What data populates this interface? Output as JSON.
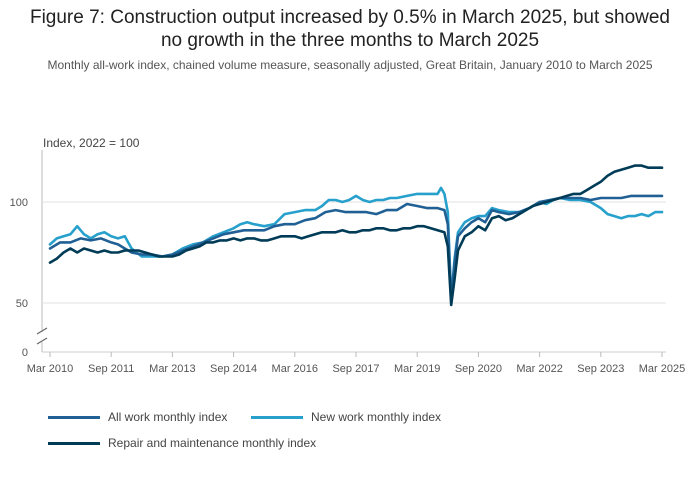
{
  "title": "Figure 7: Construction output increased by 0.5% in March 2025, but showed no growth in the three months to March 2025",
  "title_line1": "Figure 7: Construction output increased by 0.5% in March 2025, but showed",
  "title_line2": "no growth in the three months to March 2025",
  "subtitle": "Monthly all-work index, chained volume measure, seasonally adjusted, Great Britain, January 2010 to March 2025",
  "chart_data": {
    "type": "line",
    "title": "Figure 7: Construction output increased by 0.5% in March 2025, but showed no growth in the three months to March 2025",
    "ylabel": "Index, 2022 = 100",
    "xlabel": "",
    "y_ticks": [
      0,
      50,
      100
    ],
    "y_tick_labels": [
      "0",
      "50",
      "100"
    ],
    "y_axis_break": true,
    "ylim": [
      0,
      123
    ],
    "x_start": "Mar 2010",
    "x_end": "Mar 2025",
    "x_ticks": [
      "Mar 2010",
      "Sep 2011",
      "Mar 2013",
      "Sep 2014",
      "Mar 2016",
      "Sep 2017",
      "Mar 2019",
      "Sep 2020",
      "Mar 2022",
      "Sep 2023",
      "Mar 2025"
    ],
    "x_tick_months": [
      0,
      18,
      36,
      54,
      72,
      90,
      108,
      126,
      144,
      162,
      180
    ],
    "grid": true,
    "legend_position": "bottom",
    "series": [
      {
        "name": "All work monthly index",
        "color": "#206095",
        "points": [
          [
            0,
            77
          ],
          [
            3,
            80
          ],
          [
            6,
            80
          ],
          [
            9,
            82
          ],
          [
            12,
            81
          ],
          [
            15,
            82
          ],
          [
            18,
            80
          ],
          [
            20,
            79
          ],
          [
            22,
            77
          ],
          [
            24,
            75
          ],
          [
            27,
            74
          ],
          [
            30,
            74
          ],
          [
            33,
            73
          ],
          [
            36,
            74
          ],
          [
            39,
            76
          ],
          [
            42,
            78
          ],
          [
            45,
            80
          ],
          [
            48,
            82
          ],
          [
            51,
            84
          ],
          [
            54,
            85
          ],
          [
            57,
            86
          ],
          [
            60,
            86
          ],
          [
            63,
            86
          ],
          [
            66,
            88
          ],
          [
            69,
            89
          ],
          [
            72,
            89
          ],
          [
            75,
            91
          ],
          [
            78,
            92
          ],
          [
            81,
            95
          ],
          [
            84,
            96
          ],
          [
            87,
            95
          ],
          [
            90,
            95
          ],
          [
            93,
            95
          ],
          [
            96,
            94
          ],
          [
            99,
            96
          ],
          [
            102,
            96
          ],
          [
            105,
            99
          ],
          [
            108,
            98
          ],
          [
            111,
            97
          ],
          [
            114,
            97
          ],
          [
            116,
            96
          ],
          [
            117,
            89
          ],
          [
            118,
            51
          ],
          [
            119,
            70
          ],
          [
            120,
            83
          ],
          [
            122,
            87
          ],
          [
            124,
            90
          ],
          [
            126,
            92
          ],
          [
            128,
            90
          ],
          [
            130,
            96
          ],
          [
            132,
            95
          ],
          [
            135,
            94
          ],
          [
            138,
            95
          ],
          [
            141,
            97
          ],
          [
            144,
            100
          ],
          [
            147,
            101
          ],
          [
            150,
            102
          ],
          [
            153,
            102
          ],
          [
            156,
            102
          ],
          [
            159,
            101
          ],
          [
            162,
            102
          ],
          [
            165,
            102
          ],
          [
            168,
            102
          ],
          [
            171,
            103
          ],
          [
            174,
            103
          ],
          [
            177,
            103
          ],
          [
            180,
            103
          ]
        ]
      },
      {
        "name": "New work monthly index",
        "color": "#27a0cc",
        "points": [
          [
            0,
            79
          ],
          [
            2,
            82
          ],
          [
            4,
            83
          ],
          [
            6,
            84
          ],
          [
            8,
            88
          ],
          [
            10,
            84
          ],
          [
            12,
            82
          ],
          [
            14,
            84
          ],
          [
            16,
            85
          ],
          [
            18,
            83
          ],
          [
            20,
            82
          ],
          [
            22,
            83
          ],
          [
            24,
            77
          ],
          [
            27,
            73
          ],
          [
            30,
            73
          ],
          [
            33,
            73
          ],
          [
            36,
            74
          ],
          [
            39,
            77
          ],
          [
            42,
            79
          ],
          [
            45,
            80
          ],
          [
            48,
            83
          ],
          [
            51,
            85
          ],
          [
            54,
            87
          ],
          [
            56,
            89
          ],
          [
            58,
            90
          ],
          [
            60,
            89
          ],
          [
            63,
            88
          ],
          [
            66,
            89
          ],
          [
            69,
            94
          ],
          [
            72,
            95
          ],
          [
            75,
            96
          ],
          [
            78,
            96
          ],
          [
            80,
            98
          ],
          [
            82,
            101
          ],
          [
            84,
            101
          ],
          [
            86,
            100
          ],
          [
            88,
            101
          ],
          [
            90,
            103
          ],
          [
            92,
            101
          ],
          [
            94,
            100
          ],
          [
            96,
            101
          ],
          [
            98,
            101
          ],
          [
            100,
            102
          ],
          [
            102,
            102
          ],
          [
            105,
            103
          ],
          [
            108,
            104
          ],
          [
            111,
            104
          ],
          [
            114,
            104
          ],
          [
            115,
            107
          ],
          [
            116,
            104
          ],
          [
            117,
            95
          ],
          [
            118,
            52
          ],
          [
            119,
            72
          ],
          [
            120,
            85
          ],
          [
            122,
            90
          ],
          [
            124,
            92
          ],
          [
            126,
            93
          ],
          [
            128,
            93
          ],
          [
            130,
            97
          ],
          [
            132,
            96
          ],
          [
            135,
            95
          ],
          [
            138,
            95
          ],
          [
            141,
            97
          ],
          [
            144,
            100
          ],
          [
            146,
            99
          ],
          [
            148,
            101
          ],
          [
            150,
            102
          ],
          [
            153,
            101
          ],
          [
            156,
            101
          ],
          [
            159,
            100
          ],
          [
            162,
            97
          ],
          [
            164,
            94
          ],
          [
            166,
            93
          ],
          [
            168,
            92
          ],
          [
            170,
            93
          ],
          [
            172,
            93
          ],
          [
            174,
            94
          ],
          [
            176,
            93
          ],
          [
            178,
            95
          ],
          [
            180,
            95
          ]
        ]
      },
      {
        "name": "Repair and maintenance monthly index",
        "color": "#003c57",
        "points": [
          [
            0,
            70
          ],
          [
            2,
            72
          ],
          [
            4,
            75
          ],
          [
            6,
            77
          ],
          [
            8,
            75
          ],
          [
            10,
            77
          ],
          [
            12,
            76
          ],
          [
            14,
            75
          ],
          [
            16,
            76
          ],
          [
            18,
            75
          ],
          [
            20,
            75
          ],
          [
            22,
            76
          ],
          [
            24,
            76
          ],
          [
            26,
            76
          ],
          [
            28,
            75
          ],
          [
            30,
            74
          ],
          [
            32,
            73
          ],
          [
            34,
            73
          ],
          [
            36,
            73
          ],
          [
            38,
            74
          ],
          [
            40,
            76
          ],
          [
            42,
            77
          ],
          [
            44,
            78
          ],
          [
            46,
            80
          ],
          [
            48,
            80
          ],
          [
            50,
            81
          ],
          [
            52,
            81
          ],
          [
            54,
            82
          ],
          [
            56,
            81
          ],
          [
            58,
            82
          ],
          [
            60,
            82
          ],
          [
            62,
            81
          ],
          [
            64,
            81
          ],
          [
            66,
            82
          ],
          [
            68,
            83
          ],
          [
            70,
            83
          ],
          [
            72,
            83
          ],
          [
            74,
            82
          ],
          [
            76,
            83
          ],
          [
            78,
            84
          ],
          [
            80,
            85
          ],
          [
            82,
            85
          ],
          [
            84,
            85
          ],
          [
            86,
            86
          ],
          [
            88,
            85
          ],
          [
            90,
            85
          ],
          [
            92,
            86
          ],
          [
            94,
            86
          ],
          [
            96,
            87
          ],
          [
            98,
            87
          ],
          [
            100,
            86
          ],
          [
            102,
            86
          ],
          [
            104,
            87
          ],
          [
            106,
            87
          ],
          [
            108,
            88
          ],
          [
            110,
            88
          ],
          [
            112,
            87
          ],
          [
            114,
            86
          ],
          [
            116,
            85
          ],
          [
            117,
            78
          ],
          [
            118,
            49
          ],
          [
            119,
            62
          ],
          [
            120,
            76
          ],
          [
            122,
            83
          ],
          [
            124,
            85
          ],
          [
            126,
            88
          ],
          [
            128,
            86
          ],
          [
            130,
            92
          ],
          [
            132,
            93
          ],
          [
            134,
            91
          ],
          [
            136,
            92
          ],
          [
            138,
            94
          ],
          [
            140,
            96
          ],
          [
            142,
            98
          ],
          [
            144,
            99
          ],
          [
            146,
            100
          ],
          [
            148,
            101
          ],
          [
            150,
            102
          ],
          [
            152,
            103
          ],
          [
            154,
            104
          ],
          [
            156,
            104
          ],
          [
            158,
            106
          ],
          [
            160,
            108
          ],
          [
            162,
            110
          ],
          [
            164,
            113
          ],
          [
            166,
            115
          ],
          [
            168,
            116
          ],
          [
            170,
            117
          ],
          [
            172,
            118
          ],
          [
            174,
            118
          ],
          [
            176,
            117
          ],
          [
            178,
            117
          ],
          [
            180,
            117
          ]
        ]
      }
    ]
  }
}
